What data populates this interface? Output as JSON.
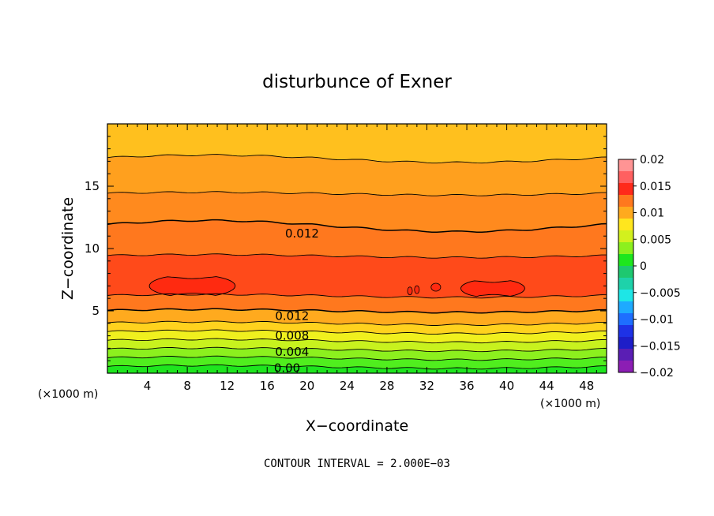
{
  "chart_data": {
    "type": "heatmap",
    "title": "disturbunce of Exner",
    "xlabel": "X−coordinate",
    "ylabel": "Z−coordinate",
    "x_unit_label_left": "(×1000 m)",
    "x_unit_label_right": "(×1000 m)",
    "xlim": [
      0,
      50
    ],
    "ylim": [
      0,
      20
    ],
    "x_ticks": [
      4,
      8,
      12,
      16,
      20,
      24,
      28,
      32,
      36,
      40,
      44,
      48
    ],
    "y_ticks": [
      5,
      10,
      15
    ],
    "footnote": "CONTOUR INTERVAL = 2.000E−03",
    "bands": [
      {
        "z_from": 0.0,
        "z_to": 0.5,
        "value": 0.0,
        "color": "#1ee61e"
      },
      {
        "z_from": 0.5,
        "z_to": 1.2,
        "value": 0.002,
        "color": "#50ee1e"
      },
      {
        "z_from": 1.2,
        "z_to": 1.9,
        "value": 0.004,
        "color": "#8cf01e"
      },
      {
        "z_from": 1.9,
        "z_to": 2.6,
        "value": 0.006,
        "color": "#c8f21e"
      },
      {
        "z_from": 2.6,
        "z_to": 3.3,
        "value": 0.008,
        "color": "#f0f01e"
      },
      {
        "z_from": 3.3,
        "z_to": 4.0,
        "value": 0.0095,
        "color": "#ffd21e"
      },
      {
        "z_from": 4.0,
        "z_to": 5.0,
        "value": 0.011,
        "color": "#ffaa1e"
      },
      {
        "z_from": 5.0,
        "z_to": 6.2,
        "value": 0.0125,
        "color": "#ff781e"
      },
      {
        "z_from": 6.2,
        "z_to": 9.4,
        "value": 0.014,
        "color": "#ff4a1a"
      },
      {
        "z_from": 9.4,
        "z_to": 11.8,
        "value": 0.0125,
        "color": "#ff781e"
      },
      {
        "z_from": 11.8,
        "z_to": 14.4,
        "value": 0.012,
        "color": "#ff8a1e"
      },
      {
        "z_from": 14.4,
        "z_to": 17.2,
        "value": 0.011,
        "color": "#ffa01e"
      },
      {
        "z_from": 17.2,
        "z_to": 20.0,
        "value": 0.01,
        "color": "#ffc01e"
      }
    ],
    "maxima_regions": [
      {
        "x_center": 8.5,
        "z_center": 7.0,
        "x_half_width": 4.3,
        "z_half_height": 0.9
      },
      {
        "x_center": 38.6,
        "z_center": 6.8,
        "x_half_width": 3.2,
        "z_half_height": 0.75
      }
    ],
    "contour_labels": [
      {
        "text": "0.012",
        "x": 19.5,
        "z": 11.2
      },
      {
        "text": "0.012",
        "x": 18.5,
        "z": 4.6
      },
      {
        "text": "0.008",
        "x": 18.5,
        "z": 3.0
      },
      {
        "text": "0.004",
        "x": 18.5,
        "z": 1.7
      },
      {
        "text": "0.00",
        "x": 18.0,
        "z": 0.4
      }
    ],
    "colorbar": {
      "labels": [
        "0.02",
        "0.015",
        "0.01",
        "0.005",
        "0",
        "−0.005",
        "−0.01",
        "−0.015",
        "−0.02"
      ],
      "colors": [
        "#ff9494",
        "#ff6060",
        "#ff2a1a",
        "#ff781e",
        "#ffaa1e",
        "#ffe61e",
        "#d2f01e",
        "#8cf01e",
        "#1ee61e",
        "#1ec870",
        "#1ed2aa",
        "#1ee6e6",
        "#1eaaff",
        "#1e6eff",
        "#1e32e6",
        "#1e1ec8",
        "#5a1eb4",
        "#8c1eb4"
      ]
    }
  }
}
